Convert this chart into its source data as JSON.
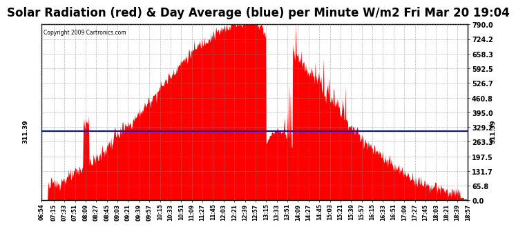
{
  "title": "Solar Radiation (red) & Day Average (blue) per Minute W/m2 Fri Mar 20 19:04",
  "copyright_text": "Copyright 2009 Cartronics.com",
  "y_min": 0.0,
  "y_max": 790.0,
  "y_ticks": [
    0.0,
    65.8,
    131.7,
    197.5,
    263.3,
    329.2,
    395.0,
    460.8,
    526.7,
    592.5,
    658.3,
    724.2,
    790.0
  ],
  "y_tick_labels": [
    "0.0",
    "65.8",
    "131.7",
    "197.5",
    "263.3",
    "329.2",
    "395.0",
    "460.8",
    "526.7",
    "592.5",
    "658.3",
    "724.2",
    "790.0"
  ],
  "day_average": 311.39,
  "fill_color": "#FF0000",
  "line_color": "#0000FF",
  "background_color": "#FFFFFF",
  "grid_color": "#888888",
  "title_fontsize": 12,
  "x_tick_labels": [
    "06:54",
    "07:15",
    "07:33",
    "07:51",
    "08:09",
    "08:27",
    "08:45",
    "09:03",
    "09:21",
    "09:39",
    "09:57",
    "10:15",
    "10:33",
    "10:51",
    "11:09",
    "11:27",
    "11:45",
    "12:03",
    "12:21",
    "12:39",
    "12:57",
    "13:15",
    "13:33",
    "13:51",
    "14:09",
    "14:27",
    "14:45",
    "15:03",
    "15:21",
    "15:39",
    "15:57",
    "16:15",
    "16:33",
    "16:51",
    "17:09",
    "17:27",
    "17:45",
    "18:03",
    "18:21",
    "18:39",
    "18:57"
  ]
}
